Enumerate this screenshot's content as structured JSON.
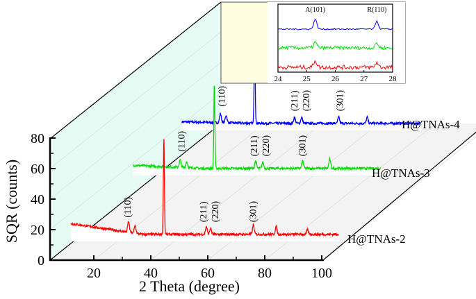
{
  "chart_data": {
    "type": "line",
    "style": "3d-waterfall",
    "xlabel": "2 Theta (degree)",
    "ylabel": "SQR (counts)",
    "xticks": [
      20,
      40,
      60,
      80,
      100
    ],
    "yticks": [
      0,
      20,
      40,
      60,
      80
    ],
    "xlim": [
      10,
      100
    ],
    "ylim": [
      0,
      80
    ],
    "grid": true,
    "series": [
      {
        "name": "H@TNAs-2",
        "color": "#ff0000",
        "x_range": [
          12,
          106
        ],
        "baseline": [
          24,
          17
        ],
        "peaks": [
          [
            32.2,
            7
          ],
          [
            34.5,
            5
          ],
          [
            44.6,
            64
          ],
          [
            59.5,
            5
          ],
          [
            61,
            4
          ],
          [
            76,
            6
          ],
          [
            84,
            5
          ],
          [
            95,
            3
          ]
        ],
        "labels": [
          {
            "text": "(110)",
            "x": 32
          },
          {
            "text": "(211)",
            "x": 58.5
          },
          {
            "text": "(220)",
            "x": 61
          },
          {
            "text": "(301)",
            "x": 76
          }
        ]
      },
      {
        "name": "H@TNAs-3",
        "color": "#00dd00",
        "x_range": [
          16,
          103
        ],
        "baseline": [
          19,
          17
        ],
        "peaks": [
          [
            32.5,
            5
          ],
          [
            34.8,
            4
          ],
          [
            44.5,
            57
          ],
          [
            59,
            5
          ],
          [
            61.5,
            4
          ],
          [
            75.5,
            5
          ],
          [
            85,
            6
          ]
        ],
        "labels": [
          {
            "text": "(110)",
            "x": 33
          },
          {
            "text": "(211)",
            "x": 58.5
          },
          {
            "text": "(220)",
            "x": 61
          },
          {
            "text": "(301)",
            "x": 75.5
          }
        ]
      },
      {
        "name": "H@TNAs-4",
        "color": "#0000ff",
        "x_range": [
          19,
          103
        ],
        "baseline": [
          18,
          17
        ],
        "peaks": [
          [
            32.5,
            6
          ],
          [
            34.5,
            5
          ],
          [
            44.5,
            55
          ],
          [
            58.5,
            4
          ],
          [
            61,
            4
          ],
          [
            74,
            4
          ],
          [
            84,
            4
          ]
        ],
        "labels": [
          {
            "text": "(110)",
            "x": 33
          },
          {
            "text": "(211)",
            "x": 58.5
          },
          {
            "text": "(220)",
            "x": 61
          },
          {
            "text": "(301)",
            "x": 74.5
          }
        ]
      }
    ],
    "inset": {
      "xlim": [
        24,
        28
      ],
      "xticks": [
        24,
        25,
        26,
        27,
        28
      ],
      "annotations": [
        {
          "text": "A(101)",
          "x": 25.3
        },
        {
          "text": "R(110)",
          "x": 27.45
        }
      ],
      "peaks": [
        25.3,
        27.45
      ]
    }
  }
}
